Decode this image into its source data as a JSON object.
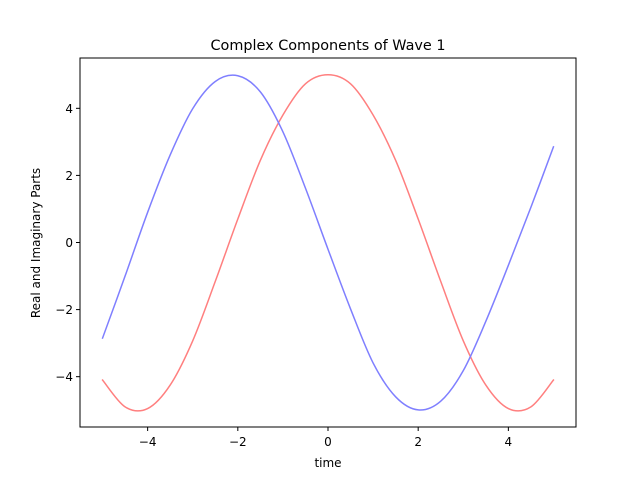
{
  "chart_data": {
    "type": "line",
    "title": "Complex Components of Wave 1",
    "xlabel": "time",
    "ylabel": "Real and Imaginary Parts",
    "xlim": [
      -5.5,
      5.5
    ],
    "ylim": [
      -5.5,
      5.5
    ],
    "x_ticks": [
      -4,
      -2,
      0,
      2,
      4
    ],
    "y_ticks": [
      -4,
      -2,
      0,
      2,
      4
    ],
    "x_tick_labels": [
      "−4",
      "−2",
      "0",
      "2",
      "4"
    ],
    "y_tick_labels": [
      "−4",
      "−2",
      "0",
      "2",
      "4"
    ],
    "grid": false,
    "legend": "none",
    "series": [
      {
        "color": "#ff7f7f",
        "x": [
          -5,
          -4.5,
          -4,
          -3.5,
          -3,
          -2.5,
          -2,
          -1.5,
          -1,
          -0.5,
          0,
          0.5,
          1,
          1.5,
          2,
          2.5,
          3,
          3.5,
          4,
          4.5,
          5
        ],
        "y": [
          -4.1,
          -4.9,
          -4.95,
          -4.25,
          -2.93,
          -1.16,
          0.7,
          2.45,
          3.8,
          4.73,
          5,
          4.73,
          3.8,
          2.45,
          0.7,
          -1.16,
          -2.93,
          -4.25,
          -4.95,
          -4.9,
          -4.1
        ]
      },
      {
        "color": "#7f7fff",
        "x": [
          -5,
          -4.5,
          -4,
          -3.5,
          -3,
          -2.5,
          -2,
          -1.5,
          -1,
          -0.5,
          0,
          0.5,
          1,
          1.5,
          2,
          2.5,
          3,
          3.5,
          4,
          4.5,
          5
        ],
        "y": [
          -2.85,
          -1.0,
          0.9,
          2.61,
          3.99,
          4.8,
          4.97,
          4.49,
          3.3,
          1.62,
          -0.2,
          -1.98,
          -3.59,
          -4.6,
          -4.99,
          -4.73,
          -3.82,
          -2.35,
          -0.68,
          1.05,
          2.85
        ]
      }
    ]
  }
}
